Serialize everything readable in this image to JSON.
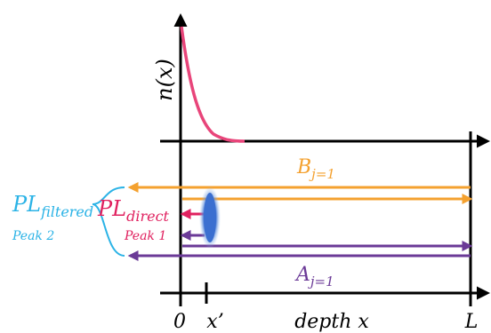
{
  "labels": {
    "y_axis": "n(x)",
    "b_label": "B",
    "b_sub": "j=1",
    "a_label": "A",
    "a_sub": "j=1",
    "pl_filtered": "PL",
    "pl_filtered_sub": "filtered",
    "peak2": "Peak 2",
    "pl_direct": "PL",
    "pl_direct_sub": "direct",
    "peak1": "Peak 1",
    "tick_0": "0",
    "tick_xprime": "x’",
    "tick_depth": "depth x",
    "tick_L": "L"
  },
  "colors": {
    "axis": "#000000",
    "curve": "#e8457a",
    "orange": "#f4a12f",
    "purple": "#6b3a97",
    "pink": "#e0215f",
    "cyan": "#2bb3e6",
    "ellipse": "#3b6fd0"
  }
}
